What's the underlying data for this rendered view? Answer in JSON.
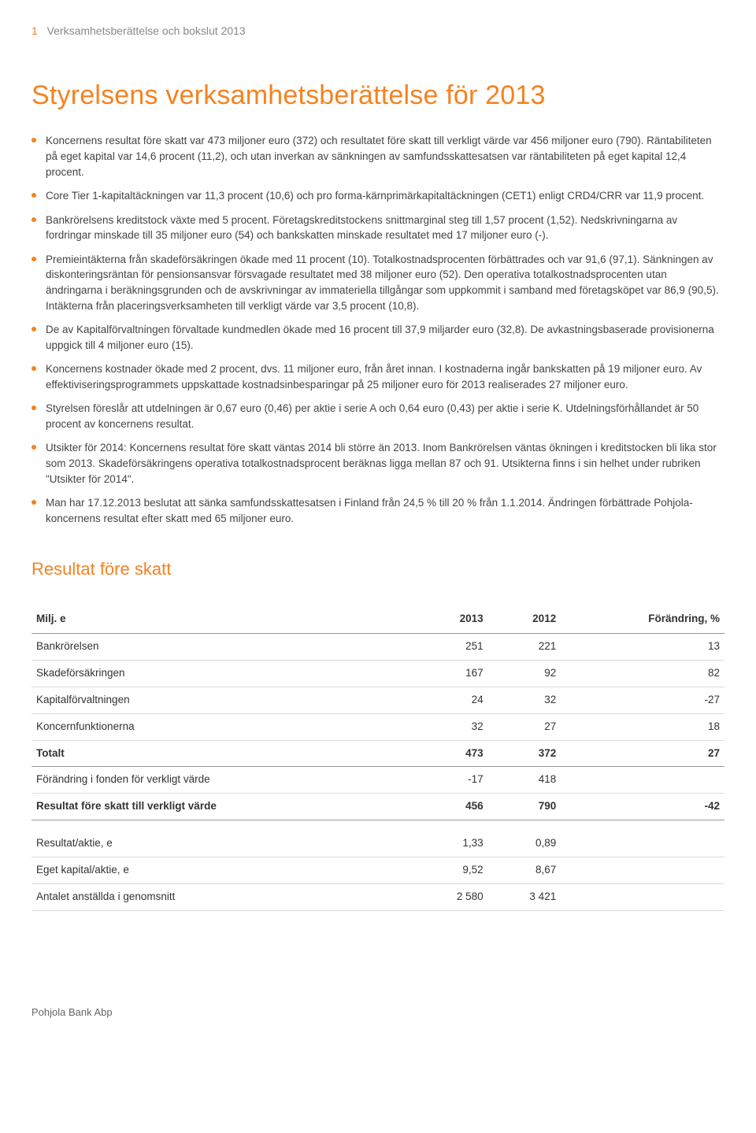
{
  "header": {
    "page_number": "1",
    "label": "Verksamhetsberättelse och bokslut 2013"
  },
  "title": "Styrelsens verksamhetsberättelse för 2013",
  "bullets": [
    "Koncernens resultat före skatt var 473 miljoner euro (372) och resultatet före skatt till verkligt värde var 456 miljoner euro (790). Räntabiliteten på eget kapital var 14,6 procent (11,2), och utan inverkan av sänkningen av samfundsskattesatsen var räntabiliteten på eget kapital 12,4 procent.",
    "Core Tier 1-kapitaltäckningen var 11,3 procent (10,6) och pro forma-kärnprimärkapitaltäckningen (CET1) enligt CRD4/CRR var 11,9 procent.",
    "Bankrörelsens kreditstock växte med 5 procent. Företagskreditstockens snittmarginal steg till 1,57 procent (1,52). Nedskrivningarna av fordringar minskade till 35 miljoner euro (54) och bankskatten minskade resultatet med 17 miljoner euro (-).",
    "Premieintäkterna från skadeförsäkringen ökade med 11 procent (10). Totalkostnadsprocenten förbättrades och var 91,6 (97,1). Sänkningen av diskonteringsräntan för pensionsansvar försvagade resultatet med 38 miljoner euro (52). Den operativa totalkostnadsprocenten utan ändringarna i beräkningsgrunden och de avskrivningar av immateriella tillgångar som uppkommit i samband med företagsköpet var 86,9 (90,5). Intäkterna från placeringsverksamheten till verkligt värde var 3,5 procent (10,8).",
    "De av Kapitalförvaltningen förvaltade kundmedlen ökade med 16 procent till 37,9 miljarder euro (32,8). De avkastningsbaserade provisionerna uppgick till 4 miljoner euro (15).",
    "Koncernens kostnader ökade med 2 procent, dvs. 11 miljoner euro, från året innan. I kostnaderna ingår bankskatten på 19 miljoner euro. Av effektiviseringsprogrammets uppskattade kostnadsinbesparingar på 25 miljoner euro för 2013 realiserades 27 miljoner euro.",
    "Styrelsen föreslår att utdelningen är 0,67 euro (0,46) per aktie i serie A och 0,64 euro (0,43) per aktie i serie K. Utdelningsförhållandet är 50 procent av koncernens resultat.",
    "Utsikter för 2014: Koncernens resultat före skatt väntas 2014 bli större än 2013. Inom Bankrörelsen väntas ökningen i kreditstocken bli lika stor som 2013. Skadeförsäkringens operativa totalkostnadsprocent beräknas ligga mellan 87 och 91. Utsikterna finns i sin helhet under rubriken \"Utsikter för 2014\".",
    "Man har 17.12.2013 beslutat att sänka samfundsskattesatsen i Finland från 24,5 % till 20 % från 1.1.2014. Ändringen förbättrade Pohjola-koncernens resultat efter skatt med 65 miljoner euro."
  ],
  "table_section": {
    "title": "Resultat före skatt",
    "columns": [
      "Milj. e",
      "2013",
      "2012",
      "Förändring, %"
    ],
    "rows": [
      {
        "cells": [
          "Bankrörelsen",
          "251",
          "221",
          "13"
        ],
        "style": "normal"
      },
      {
        "cells": [
          "Skadeförsäkringen",
          "167",
          "92",
          "82"
        ],
        "style": "normal"
      },
      {
        "cells": [
          "Kapitalförvaltningen",
          "24",
          "32",
          "-27"
        ],
        "style": "normal"
      },
      {
        "cells": [
          "Koncernfunktionerna",
          "32",
          "27",
          "18"
        ],
        "style": "normal"
      },
      {
        "cells": [
          "Totalt",
          "473",
          "372",
          "27"
        ],
        "style": "bold"
      },
      {
        "cells": [
          "Förändring i fonden för verkligt värde",
          "-17",
          "418",
          ""
        ],
        "style": "normal"
      },
      {
        "cells": [
          "Resultat före skatt till verkligt värde",
          "456",
          "790",
          "-42"
        ],
        "style": "bold"
      },
      {
        "cells": [
          "Resultat/aktie, e",
          "1,33",
          "0,89",
          ""
        ],
        "style": "gap"
      },
      {
        "cells": [
          "Eget kapital/aktie, e",
          "9,52",
          "8,67",
          ""
        ],
        "style": "normal"
      },
      {
        "cells": [
          "Antalet anställda i genomsnitt",
          "2 580",
          "3 421",
          ""
        ],
        "style": "normal"
      }
    ]
  },
  "footer": "Pohjola Bank Abp",
  "colors": {
    "accent": "#f58220",
    "text": "#333333",
    "muted": "#888888",
    "border": "#dddddd",
    "border_strong": "#999999",
    "background": "#ffffff"
  }
}
